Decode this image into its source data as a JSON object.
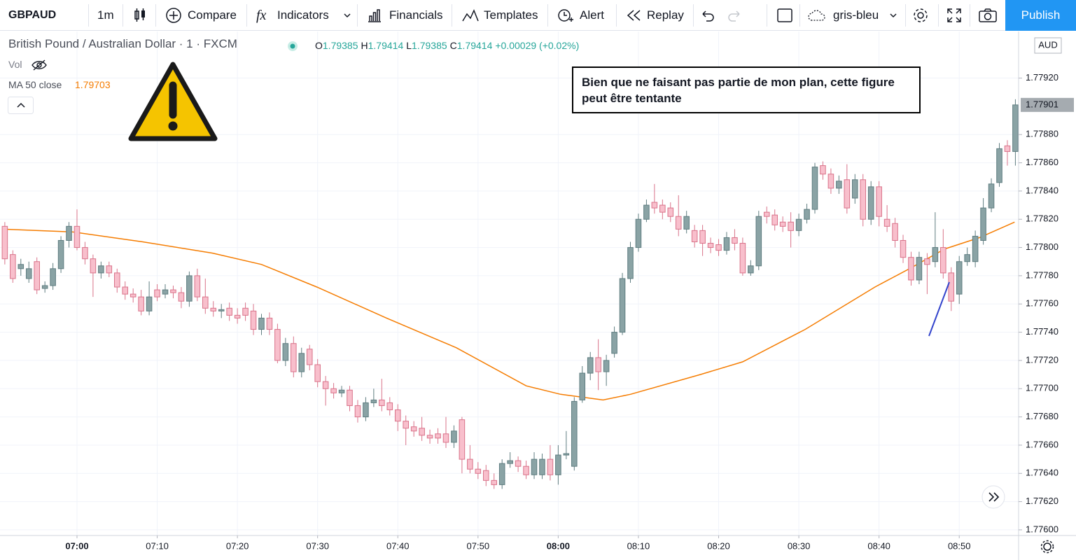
{
  "toolbar": {
    "symbol": "GBPAUD",
    "interval": "1m",
    "compare": "Compare",
    "indicators": "Indicators",
    "financials": "Financials",
    "templates": "Templates",
    "alert": "Alert",
    "replay": "Replay",
    "theme": "gris-bleu",
    "publish": "Publish"
  },
  "legend": {
    "title": "British Pound / Australian Dollar · 1 · FXCM",
    "ohlc": [
      {
        "label": "O",
        "value": "1.79385"
      },
      {
        "label": "H",
        "value": "1.79414"
      },
      {
        "label": "L",
        "value": "1.79385"
      },
      {
        "label": "C",
        "value": "1.79414"
      }
    ],
    "change": "+0.00029 (+0.02%)",
    "vol": "Vol",
    "ma_value": "1.79703"
  },
  "annotation": "Bien que ne faisant pas partie de mon plan, cette figure peut être tentante",
  "chart_data": {
    "type": "candlestick",
    "currency": "AUD",
    "up_color": "#8aa3a5",
    "up_border": "#5f7d80",
    "down_color": "#f8bfcc",
    "down_border": "#d9738a",
    "xlim": [
      -0.6,
      126.4
    ],
    "ylim": [
      1.77596,
      1.77953
    ],
    "xticks": [
      {
        "value": 9,
        "label": "07:00",
        "major": true
      },
      {
        "value": 19,
        "label": "07:10"
      },
      {
        "value": 29,
        "label": "07:20"
      },
      {
        "value": 39,
        "label": "07:30"
      },
      {
        "value": 49,
        "label": "07:40"
      },
      {
        "value": 59,
        "label": "07:50"
      },
      {
        "value": 69,
        "label": "08:00",
        "major": true
      },
      {
        "value": 79,
        "label": "08:10"
      },
      {
        "value": 89,
        "label": "08:20"
      },
      {
        "value": 99,
        "label": "08:30"
      },
      {
        "value": 109,
        "label": "08:40"
      },
      {
        "value": 119,
        "label": "08:50"
      }
    ],
    "yticks": [
      {
        "value": 1.776,
        "label": "1.77600"
      },
      {
        "value": 1.7762,
        "label": "1.77620"
      },
      {
        "value": 1.7764,
        "label": "1.77640"
      },
      {
        "value": 1.7766,
        "label": "1.77660"
      },
      {
        "value": 1.7768,
        "label": "1.77680"
      },
      {
        "value": 1.777,
        "label": "1.77700"
      },
      {
        "value": 1.7772,
        "label": "1.77720"
      },
      {
        "value": 1.7774,
        "label": "1.77740"
      },
      {
        "value": 1.7776,
        "label": "1.77760"
      },
      {
        "value": 1.7778,
        "label": "1.77780"
      },
      {
        "value": 1.778,
        "label": "1.77800"
      },
      {
        "value": 1.7782,
        "label": "1.77820"
      },
      {
        "value": 1.7784,
        "label": "1.77840"
      },
      {
        "value": 1.7786,
        "label": "1.77860"
      },
      {
        "value": 1.7788,
        "label": "1.77880"
      },
      {
        "value": 1.7792,
        "label": "1.77920"
      }
    ],
    "grid": true,
    "candles": [
      [
        1.77815,
        1.77818,
        1.77788,
        1.77792
      ],
      [
        1.77795,
        1.77798,
        1.77775,
        1.77778
      ],
      [
        1.77785,
        1.77792,
        1.7778,
        1.77788
      ],
      [
        1.77778,
        1.7779,
        1.77775,
        1.77785
      ],
      [
        1.7779,
        1.77793,
        1.77767,
        1.7777
      ],
      [
        1.77771,
        1.77776,
        1.77768,
        1.77773
      ],
      [
        1.77773,
        1.77789,
        1.7777,
        1.77785
      ],
      [
        1.77785,
        1.77808,
        1.77782,
        1.77805
      ],
      [
        1.77805,
        1.77818,
        1.778,
        1.77815
      ],
      [
        1.77815,
        1.77827,
        1.77798,
        1.778
      ],
      [
        1.778,
        1.77804,
        1.77788,
        1.77792
      ],
      [
        1.77792,
        1.77795,
        1.77765,
        1.77782
      ],
      [
        1.77782,
        1.7779,
        1.77778,
        1.77787
      ],
      [
        1.77787,
        1.7779,
        1.77779,
        1.77782
      ],
      [
        1.77782,
        1.77785,
        1.77768,
        1.77772
      ],
      [
        1.77772,
        1.77776,
        1.77763,
        1.77767
      ],
      [
        1.77767,
        1.77771,
        1.77761,
        1.77765
      ],
      [
        1.77765,
        1.7777,
        1.77752,
        1.77755
      ],
      [
        1.77755,
        1.77776,
        1.77752,
        1.77765
      ],
      [
        1.7777,
        1.77774,
        1.77762,
        1.77765
      ],
      [
        1.77767,
        1.77774,
        1.77764,
        1.7777
      ],
      [
        1.7777,
        1.77773,
        1.77764,
        1.77768
      ],
      [
        1.77768,
        1.77772,
        1.77757,
        1.77762
      ],
      [
        1.77762,
        1.77783,
        1.77758,
        1.7778
      ],
      [
        1.7778,
        1.77785,
        1.77762,
        1.77765
      ],
      [
        1.77765,
        1.77778,
        1.77753,
        1.77757
      ],
      [
        1.77757,
        1.77762,
        1.77751,
        1.77755
      ],
      [
        1.77755,
        1.7776,
        1.7775,
        1.77756
      ],
      [
        1.77757,
        1.77761,
        1.77748,
        1.77752
      ],
      [
        1.77752,
        1.77757,
        1.77746,
        1.7775
      ],
      [
        1.77757,
        1.77761,
        1.77748,
        1.77752
      ],
      [
        1.77755,
        1.7776,
        1.77738,
        1.77742
      ],
      [
        1.77742,
        1.77753,
        1.77738,
        1.7775
      ],
      [
        1.7775,
        1.77754,
        1.77738,
        1.77742
      ],
      [
        1.77742,
        1.77746,
        1.77718,
        1.7772
      ],
      [
        1.7772,
        1.77736,
        1.77716,
        1.77732
      ],
      [
        1.77732,
        1.77737,
        1.77708,
        1.77712
      ],
      [
        1.77712,
        1.77729,
        1.77708,
        1.77725
      ],
      [
        1.77728,
        1.77731,
        1.77713,
        1.77717
      ],
      [
        1.77717,
        1.77721,
        1.77701,
        1.77705
      ],
      [
        1.77705,
        1.77709,
        1.77688,
        1.777
      ],
      [
        1.777,
        1.77704,
        1.77693,
        1.77697
      ],
      [
        1.77697,
        1.77702,
        1.77694,
        1.77699
      ],
      [
        1.77699,
        1.77702,
        1.77684,
        1.77688
      ],
      [
        1.77688,
        1.77692,
        1.77676,
        1.7768
      ],
      [
        1.7768,
        1.77694,
        1.77677,
        1.7769
      ],
      [
        1.7769,
        1.777,
        1.77687,
        1.77692
      ],
      [
        1.77692,
        1.77707,
        1.77684,
        1.77688
      ],
      [
        1.7769,
        1.77694,
        1.77681,
        1.77685
      ],
      [
        1.77685,
        1.77689,
        1.7767,
        1.77677
      ],
      [
        1.77677,
        1.77681,
        1.7766,
        1.77672
      ],
      [
        1.77673,
        1.77677,
        1.77666,
        1.7767
      ],
      [
        1.77672,
        1.7768,
        1.77663,
        1.77667
      ],
      [
        1.77667,
        1.77671,
        1.77661,
        1.77665
      ],
      [
        1.77668,
        1.77672,
        1.77661,
        1.77665
      ],
      [
        1.77668,
        1.7768,
        1.77658,
        1.77662
      ],
      [
        1.77662,
        1.77674,
        1.77658,
        1.7767
      ],
      [
        1.77678,
        1.7768,
        1.7764,
        1.7765
      ],
      [
        1.7765,
        1.7766,
        1.7764,
        1.77643
      ],
      [
        1.77643,
        1.77648,
        1.77636,
        1.7764
      ],
      [
        1.77642,
        1.77646,
        1.77631,
        1.77635
      ],
      [
        1.77635,
        1.7764,
        1.77629,
        1.77632
      ],
      [
        1.77632,
        1.7765,
        1.77629,
        1.77647
      ],
      [
        1.77647,
        1.77655,
        1.77644,
        1.77649
      ],
      [
        1.77649,
        1.77652,
        1.77641,
        1.77645
      ],
      [
        1.77645,
        1.77649,
        1.77636,
        1.77639
      ],
      [
        1.77639,
        1.77655,
        1.77636,
        1.7765
      ],
      [
        1.77639,
        1.77654,
        1.77636,
        1.7765
      ],
      [
        1.7765,
        1.7766,
        1.77635,
        1.77639
      ],
      [
        1.77639,
        1.7766,
        1.77632,
        1.77653
      ],
      [
        1.77653,
        1.7767,
        1.7765,
        1.77654
      ],
      [
        1.77645,
        1.77694,
        1.77642,
        1.77691
      ],
      [
        1.77692,
        1.77716,
        1.7769,
        1.77711
      ],
      [
        1.77711,
        1.77726,
        1.77706,
        1.77722
      ],
      [
        1.77722,
        1.77735,
        1.77699,
        1.77712
      ],
      [
        1.77712,
        1.77724,
        1.77702,
        1.7772
      ],
      [
        1.77725,
        1.77744,
        1.77722,
        1.7774
      ],
      [
        1.7774,
        1.77782,
        1.77738,
        1.77778
      ],
      [
        1.77778,
        1.77804,
        1.77775,
        1.778
      ],
      [
        1.778,
        1.77824,
        1.77797,
        1.7782
      ],
      [
        1.7782,
        1.77834,
        1.77818,
        1.7783
      ],
      [
        1.77832,
        1.77845,
        1.77824,
        1.77828
      ],
      [
        1.7783,
        1.77834,
        1.7782,
        1.77825
      ],
      [
        1.77828,
        1.77832,
        1.77818,
        1.77822
      ],
      [
        1.77822,
        1.77837,
        1.77808,
        1.77813
      ],
      [
        1.77813,
        1.77826,
        1.7781,
        1.77822
      ],
      [
        1.77812,
        1.77816,
        1.778,
        1.77804
      ],
      [
        1.77812,
        1.77816,
        1.77794,
        1.77803
      ],
      [
        1.77803,
        1.77807,
        1.77796,
        1.778
      ],
      [
        1.77802,
        1.77806,
        1.77794,
        1.77798
      ],
      [
        1.77798,
        1.77811,
        1.77795,
        1.77807
      ],
      [
        1.77807,
        1.77813,
        1.77798,
        1.77803
      ],
      [
        1.77803,
        1.77807,
        1.7778,
        1.77782
      ],
      [
        1.77782,
        1.77791,
        1.7778,
        1.77787
      ],
      [
        1.77787,
        1.77826,
        1.77784,
        1.77822
      ],
      [
        1.77825,
        1.77829,
        1.77817,
        1.77822
      ],
      [
        1.77823,
        1.77827,
        1.77812,
        1.77816
      ],
      [
        1.77818,
        1.77822,
        1.77811,
        1.77815
      ],
      [
        1.77818,
        1.77825,
        1.778,
        1.77812
      ],
      [
        1.77812,
        1.77824,
        1.77808,
        1.7782
      ],
      [
        1.7782,
        1.77831,
        1.77817,
        1.77827
      ],
      [
        1.77827,
        1.7786,
        1.77824,
        1.77857
      ],
      [
        1.77858,
        1.77861,
        1.77848,
        1.77852
      ],
      [
        1.77852,
        1.77856,
        1.77838,
        1.77842
      ],
      [
        1.77842,
        1.77851,
        1.77838,
        1.77847
      ],
      [
        1.77848,
        1.77859,
        1.77824,
        1.77828
      ],
      [
        1.77835,
        1.77852,
        1.77831,
        1.77848
      ],
      [
        1.77848,
        1.77852,
        1.77815,
        1.7782
      ],
      [
        1.7782,
        1.77847,
        1.77816,
        1.77843
      ],
      [
        1.77843,
        1.77847,
        1.77815,
        1.77822
      ],
      [
        1.7782,
        1.7783,
        1.77811,
        1.77815
      ],
      [
        1.77817,
        1.77821,
        1.778,
        1.77805
      ],
      [
        1.77805,
        1.77809,
        1.77789,
        1.77793
      ],
      [
        1.77793,
        1.77797,
        1.77773,
        1.77777
      ],
      [
        1.77777,
        1.77797,
        1.77774,
        1.77793
      ],
      [
        1.77792,
        1.77796,
        1.77767,
        1.77788
      ],
      [
        1.7779,
        1.77825,
        1.77786,
        1.778
      ],
      [
        1.778,
        1.77813,
        1.77778,
        1.77782
      ],
      [
        1.77782,
        1.77786,
        1.77755,
        1.77762
      ],
      [
        1.77767,
        1.77794,
        1.7776,
        1.7779
      ],
      [
        1.7779,
        1.778,
        1.77787,
        1.77795
      ],
      [
        1.7779,
        1.77812,
        1.77786,
        1.77808
      ],
      [
        1.77805,
        1.77835,
        1.77802,
        1.77828
      ],
      [
        1.77828,
        1.77849,
        1.77825,
        1.77845
      ],
      [
        1.77846,
        1.77874,
        1.77843,
        1.7787
      ],
      [
        1.77872,
        1.77876,
        1.77858,
        1.77868
      ],
      [
        1.77868,
        1.77905,
        1.77858,
        1.77901
      ]
    ],
    "overlay": {
      "name": "MA 50 close",
      "color": "#f57c00",
      "x": [
        -0.2,
        8.5,
        17.2,
        25.9,
        32,
        38.9,
        47.6,
        56.3,
        65,
        69.3,
        74.6,
        78,
        86.7,
        92,
        99.8,
        108.5,
        112.8,
        117.2,
        121.5,
        125.9
      ],
      "values": [
        1.77813,
        1.77811,
        1.77804,
        1.77796,
        1.77788,
        1.77772,
        1.7775,
        1.77729,
        1.77702,
        1.77696,
        1.77692,
        1.77696,
        1.7771,
        1.77719,
        1.77742,
        1.77772,
        1.77785,
        1.77799,
        1.77807,
        1.77818
      ]
    }
  }
}
